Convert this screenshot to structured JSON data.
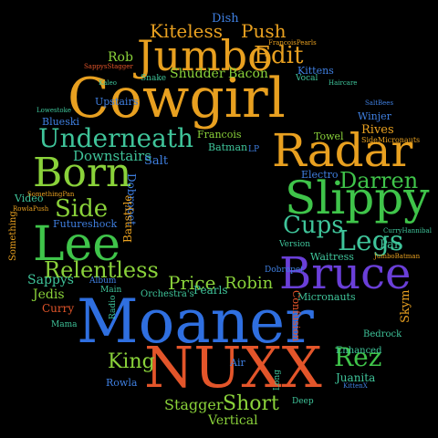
{
  "words": [
    {
      "text": "Moaner",
      "color": "#2f6fe0"
    },
    {
      "text": "NUXX",
      "color": "#e3552a"
    },
    {
      "text": "Cowgirl",
      "color": "#e8a020"
    },
    {
      "text": "Jumbo",
      "color": "#e8a020"
    },
    {
      "text": "Radar",
      "color": "#e8a020"
    },
    {
      "text": "Slippy",
      "color": "#3fc44a"
    },
    {
      "text": "Bruce",
      "color": "#6a3fd8"
    },
    {
      "text": "Born",
      "color": "#8ad23a"
    },
    {
      "text": "Lee",
      "color": "#3fc44a"
    },
    {
      "text": "Underneath",
      "color": "#3fc49a"
    },
    {
      "text": "Relentless",
      "color": "#8ad23a"
    },
    {
      "text": "Kiteless",
      "color": "#e8a020"
    },
    {
      "text": "Push",
      "color": "#e8a020"
    },
    {
      "text": "Edit",
      "color": "#e8a020"
    },
    {
      "text": "Darren",
      "color": "#3fc44a"
    },
    {
      "text": "Legs",
      "color": "#3fc49a"
    },
    {
      "text": "Cups",
      "color": "#3fc49a"
    },
    {
      "text": "Side",
      "color": "#8ad23a"
    },
    {
      "text": "Rez",
      "color": "#3fc44a"
    },
    {
      "text": "King",
      "color": "#8ad23a"
    },
    {
      "text": "Short",
      "color": "#8ad23a"
    },
    {
      "text": "Price",
      "color": "#8ad23a"
    },
    {
      "text": "Robin",
      "color": "#8ad23a"
    },
    {
      "text": "Shudder",
      "color": "#8ad23a"
    },
    {
      "text": "Bacon",
      "color": "#8ad23a"
    },
    {
      "text": "Downstairs",
      "color": "#3fc49a"
    },
    {
      "text": "Stagger",
      "color": "#8ad23a"
    },
    {
      "text": "Vertical",
      "color": "#8ad23a"
    },
    {
      "text": "Sappys",
      "color": "#3fc49a"
    },
    {
      "text": "Jedis",
      "color": "#8ad23a"
    },
    {
      "text": "Curry",
      "color": "#e3552a"
    },
    {
      "text": "Rob",
      "color": "#8ad23a"
    },
    {
      "text": "Dish",
      "color": "#3f7fe0"
    },
    {
      "text": "Salt",
      "color": "#3f7fe0"
    },
    {
      "text": "Pan",
      "color": "#3fc49a"
    },
    {
      "text": "Video",
      "color": "#3fc49a"
    },
    {
      "text": "Rives",
      "color": "#e8a020"
    },
    {
      "text": "Towel",
      "color": "#8ad23a"
    },
    {
      "text": "Batman",
      "color": "#3fc49a"
    },
    {
      "text": "Francois",
      "color": "#8ad23a"
    },
    {
      "text": "Electro",
      "color": "#3f7fe0"
    },
    {
      "text": "Waitress",
      "color": "#3fc49a"
    },
    {
      "text": "Blueski",
      "color": "#3f7fe0"
    },
    {
      "text": "Juanita",
      "color": "#3fc49a"
    },
    {
      "text": "Pearls",
      "color": "#3fc49a"
    },
    {
      "text": "Micronauts",
      "color": "#3fc49a"
    },
    {
      "text": "Bedrock",
      "color": "#3fc49a"
    },
    {
      "text": "Enhanced",
      "color": "#3fc49a"
    },
    {
      "text": "Rowla",
      "color": "#3f7fe0"
    },
    {
      "text": "Winjer",
      "color": "#3f7fe0"
    },
    {
      "text": "Kittens",
      "color": "#3f7fe0"
    },
    {
      "text": "Upstairs",
      "color": "#3f7fe0"
    },
    {
      "text": "Snake",
      "color": "#3fc49a"
    },
    {
      "text": "Vocal",
      "color": "#3fc49a"
    },
    {
      "text": "Version",
      "color": "#3fc49a"
    },
    {
      "text": "Dobropet",
      "color": "#3f7fe0"
    },
    {
      "text": "Banstyle",
      "color": "#e8a020"
    },
    {
      "text": "Skym",
      "color": "#e8a020"
    },
    {
      "text": "Confusion",
      "color": "#e3552a"
    },
    {
      "text": "Orchestra's",
      "color": "#3fc49a"
    },
    {
      "text": "Album",
      "color": "#3f7fe0"
    },
    {
      "text": "Main",
      "color": "#3fc49a"
    },
    {
      "text": "Mama",
      "color": "#3fc49a"
    },
    {
      "text": "Something",
      "color": "#e8a020"
    },
    {
      "text": "Futureshock",
      "color": "#3f7fe0"
    },
    {
      "text": "Deep",
      "color": "#3fc49a"
    },
    {
      "text": "Air",
      "color": "#3f7fe0"
    },
    {
      "text": "Long",
      "color": "#3fc49a"
    },
    {
      "text": "LP",
      "color": "#3f7fe0"
    },
    {
      "text": "Live",
      "color": "#e8a020"
    },
    {
      "text": "Radio",
      "color": "#3fc49a"
    },
    {
      "text": "FrancoisPearls",
      "color": "#e8a020"
    },
    {
      "text": "SideMicronauts",
      "color": "#e8a020"
    },
    {
      "text": "SaltBees",
      "color": "#3f7fe0"
    },
    {
      "text": "SomethingPan",
      "color": "#e8a020"
    },
    {
      "text": "RowlaPush",
      "color": "#e8a020"
    },
    {
      "text": "JumboBatman",
      "color": "#e8a020"
    },
    {
      "text": "SappysStagger",
      "color": "#e3552a"
    },
    {
      "text": "KittenX",
      "color": "#3f7fe0"
    },
    {
      "text": "Lowestoke",
      "color": "#3fc49a"
    },
    {
      "text": "CurryHannibal",
      "color": "#3fc49a"
    },
    {
      "text": "Kaleo",
      "color": "#3fc49a"
    },
    {
      "text": "Haircare",
      "color": "#3fc49a"
    }
  ]
}
